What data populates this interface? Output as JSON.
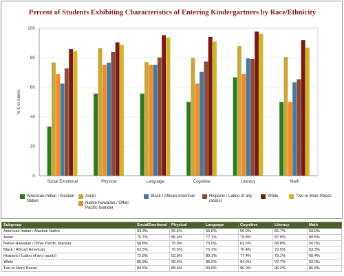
{
  "chart_data": {
    "type": "bar",
    "title": "Percent of Students Exhibiting Characteristics of Entering Kindergartners by Race/Ethnicity",
    "ylabel": "% K or Above",
    "xlabel": "",
    "ylim": [
      0,
      100
    ],
    "yticks": [
      0,
      20,
      40,
      60,
      80,
      100
    ],
    "categories": [
      "Social Emotional",
      "Physical",
      "Language",
      "Cognitive",
      "Literacy",
      "Math"
    ],
    "series": [
      {
        "name": "American Indian / Alaskan Native",
        "color": "#2f7a1e",
        "values": [
          33.3,
          55.6,
          55.6,
          50.0,
          66.7,
          50.0
        ]
      },
      {
        "name": "Asian",
        "color": "#c8a83c",
        "values": [
          76.7,
          86.4,
          77.1,
          79.8,
          87.9,
          80.5
        ]
      },
      {
        "name": "Native Hawaiian / Other Pacific Islander",
        "color": "#f08c28",
        "values": [
          68.8,
          75.0,
          75.0,
          62.5,
          68.8,
          50.0
        ]
      },
      {
        "name": "Black / African American",
        "color": "#4a7a9a",
        "values": [
          62.5,
          76.5,
          75.1,
          70.4,
          79.5,
          63.3
        ]
      },
      {
        "name": "Hispanic / Latino of any race(s)",
        "color": "#8a4a3c",
        "values": [
          72.8,
          83.8,
          80.1,
          77.4,
          79.1,
          65.4
        ]
      },
      {
        "name": "White",
        "color": "#7a1a10",
        "values": [
          85.9,
          90.4,
          95.2,
          94.0,
          97.7,
          92.0
        ]
      },
      {
        "name": "Two or More Races",
        "color": "#d2b42c",
        "values": [
          84.5,
          88.6,
          93.6,
          90.9,
          96.2,
          86.8
        ]
      }
    ],
    "grid": true,
    "legend_position": "bottom"
  },
  "table": {
    "headers": [
      "Subgroup",
      "SocialEmotional",
      "Physical",
      "Language",
      "Cognitive",
      "Literacy",
      "Math"
    ],
    "rows": [
      [
        "American Indian / Alaskan Native",
        "33.3%",
        "55.6%",
        "55.6%",
        "50.0%",
        "66.7%",
        "50.0%"
      ],
      [
        "Asian",
        "76.7%",
        "86.4%",
        "77.1%",
        "79.8%",
        "87.9%",
        "80.5%"
      ],
      [
        "Native Hawaiian / Other Pacific Islander",
        "68.8%",
        "75.0%",
        "75.0%",
        "62.5%",
        "68.8%",
        "50.0%"
      ],
      [
        "Black / African American",
        "62.5%",
        "76.5%",
        "75.1%",
        "70.4%",
        "79.5%",
        "63.3%"
      ],
      [
        "Hispanic / Latino of any race(s)",
        "72.8%",
        "83.8%",
        "80.1%",
        "77.4%",
        "79.1%",
        "65.4%"
      ],
      [
        "White",
        "85.9%",
        "90.4%",
        "95.2%",
        "94.0%",
        "97.7%",
        "92.0%"
      ],
      [
        "Two or More Races",
        "84.5%",
        "88.6%",
        "93.6%",
        "90.9%",
        "96.2%",
        "86.8%"
      ]
    ]
  }
}
